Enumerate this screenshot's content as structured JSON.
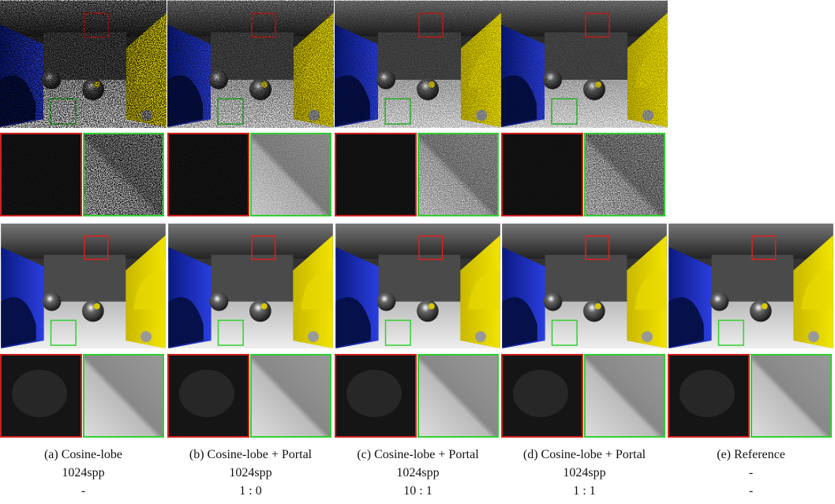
{
  "columns": [
    {
      "label": "(a) Cosine-lobe",
      "spp": "1024spp",
      "ratio": "-"
    },
    {
      "label": "(b) Cosine-lobe + Portal",
      "spp": "1024spp",
      "ratio": "1 : 0"
    },
    {
      "label": "(c) Cosine-lobe + Portal",
      "spp": "1024spp",
      "ratio": "10 : 1"
    },
    {
      "label": "(d) Cosine-lobe + Portal",
      "spp": "1024spp",
      "ratio": "1 : 1"
    },
    {
      "label": "(e) Reference",
      "spp": "-",
      "ratio": "-"
    }
  ]
}
